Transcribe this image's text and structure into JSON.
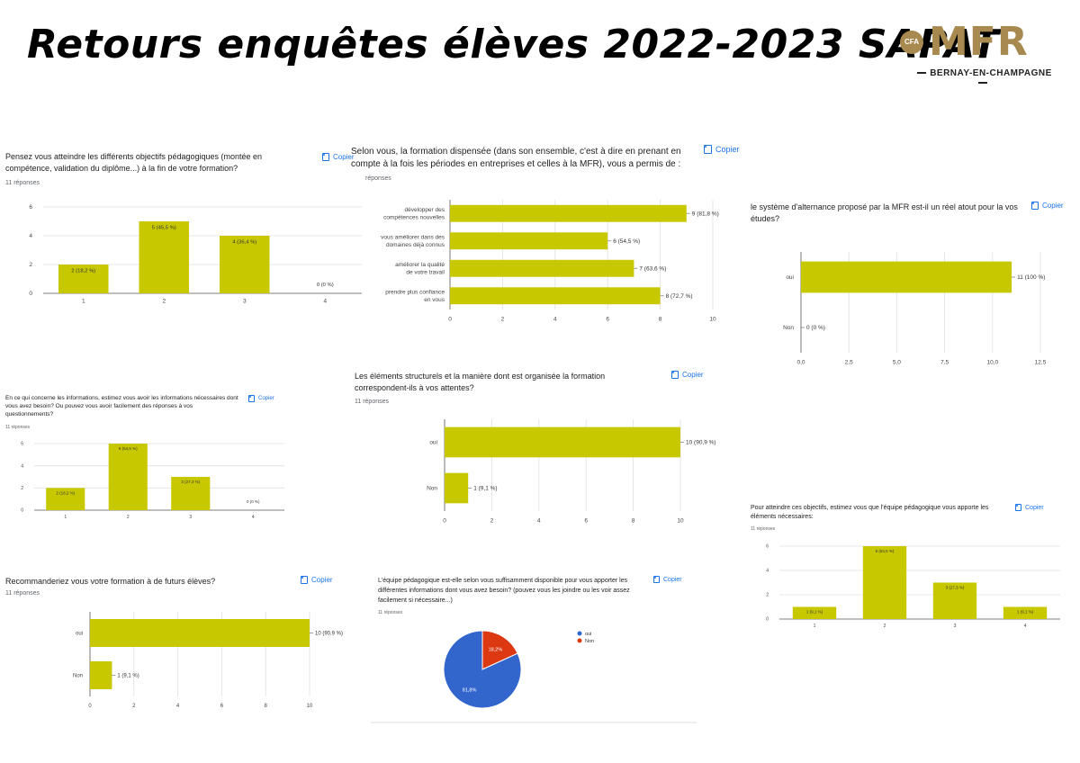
{
  "page": {
    "title": "Retours enquêtes élèves 2022-2023 SAPAT",
    "logo": {
      "cfa": "CFA",
      "main": "MFR",
      "sub": "BERNAY-EN-CHAMPAGNE"
    },
    "copy_label": "Copier",
    "responses_label": "11 réponses"
  },
  "colors": {
    "bar": "#c7c800",
    "pie_oui": "#3366cc",
    "pie_non": "#dc3912",
    "link": "#1a73e8"
  },
  "chart_data": [
    {
      "id": "c1",
      "type": "bar",
      "question": "Pensez vous atteindre les différents objectifs pédagogiques (montée en compétence, validation du diplôme...) à la fin de votre formation?",
      "responses": "11 réponses",
      "categories": [
        "1",
        "2",
        "3",
        "4"
      ],
      "values": [
        2,
        5,
        4,
        0
      ],
      "labels": [
        "2 (18,2 %)",
        "5 (45,5 %)",
        "4 (36,4 %)",
        "0 (0 %)"
      ],
      "ylim": [
        0,
        6
      ],
      "yticks": [
        "0",
        "2",
        "4",
        "6"
      ]
    },
    {
      "id": "c2",
      "type": "bar",
      "orientation": "horizontal",
      "question": "Selon vous, la formation dispensée (dans son ensemble, c'est à dire en prenant en compte à la fois les périodes en entreprises et celles à la MFR), vous a permis de :",
      "responses": "réponses",
      "categories": [
        "développer des compétences nouvelles",
        "vous améliorer dans des domaines déjà connus",
        "améliorer la qualité de votre travail",
        "prendre plus confiance en vous"
      ],
      "values": [
        9,
        6,
        7,
        8
      ],
      "labels": [
        "9 (81,8 %)",
        "6 (54,5 %)",
        "7 (63,6 %)",
        "8 (72,7 %)"
      ],
      "xlim": [
        0,
        10
      ],
      "xticks": [
        "0",
        "2",
        "4",
        "6",
        "8",
        "10"
      ]
    },
    {
      "id": "c3",
      "type": "bar",
      "orientation": "horizontal",
      "question": "le système d'alternance proposé par la MFR est-il un réel atout pour la vos études?",
      "categories": [
        "oui",
        "Non"
      ],
      "values": [
        11,
        0
      ],
      "labels": [
        "11 (100 %)",
        "0 (0 %)"
      ],
      "xlim": [
        0,
        12.5
      ],
      "xticks": [
        "0,0",
        "2,5",
        "5,0",
        "7,5",
        "10,0",
        "12,5"
      ]
    },
    {
      "id": "c4",
      "type": "bar",
      "question": "En ce qui concerne les informations, estimez vous avoir les informations nécessaires dont vous avez besoin? Ou pouvez vous avoir facilement des réponses à vos questionnements?",
      "responses": "11 réponses",
      "categories": [
        "1",
        "2",
        "3",
        "4"
      ],
      "values": [
        2,
        6,
        3,
        0
      ],
      "labels": [
        "2 (18,2 %)",
        "6 (54,5 %)",
        "3 (27,3 %)",
        "0 (0 %)"
      ],
      "ylim": [
        0,
        6
      ],
      "yticks": [
        "0",
        "2",
        "4",
        "6"
      ]
    },
    {
      "id": "c5",
      "type": "bar",
      "orientation": "horizontal",
      "question": "Les éléments structurels et la manière dont est organisée la formation correspondent-ils à vos attentes?",
      "responses": "11 réponses",
      "categories": [
        "oui",
        "Non"
      ],
      "values": [
        10,
        1
      ],
      "labels": [
        "10 (90,9 %)",
        "1 (9,1 %)"
      ],
      "xlim": [
        0,
        10
      ],
      "xticks": [
        "0",
        "2",
        "4",
        "6",
        "8",
        "10"
      ]
    },
    {
      "id": "c6",
      "type": "bar",
      "question": "Pour atteindre ces objectifs, estimez vous que l'équipe pédagogique vous apporte les éléments nécessaires:",
      "responses": "11 réponses",
      "categories": [
        "1",
        "2",
        "3",
        "4"
      ],
      "values": [
        1,
        6,
        3,
        1
      ],
      "labels": [
        "1 (9,1 %)",
        "6 (54,5 %)",
        "3 (27,3 %)",
        "1 (9,1 %)"
      ],
      "ylim": [
        0,
        6
      ],
      "yticks": [
        "0",
        "2",
        "4",
        "6"
      ]
    },
    {
      "id": "c7",
      "type": "bar",
      "orientation": "horizontal",
      "question": "Recommanderiez vous votre formation à de futurs élèves?",
      "responses": "11 réponses",
      "categories": [
        "oui",
        "Non"
      ],
      "values": [
        10,
        1
      ],
      "labels": [
        "10 (90,9 %)",
        "1 (9,1 %)"
      ],
      "xlim": [
        0,
        10
      ],
      "xticks": [
        "0",
        "2",
        "4",
        "6",
        "8",
        "10"
      ]
    },
    {
      "id": "c8",
      "type": "pie",
      "question": "L'équipe pédagogique est-elle selon vous suffisamment disponible pour vous apporter les différentes informations dont vous avez besoin? (pouvez vous les joindre ou les voir assez facilement si nécessaire...)",
      "responses": "11 réponses",
      "slices": [
        {
          "name": "oui",
          "value": 81.8,
          "label": "81,8%"
        },
        {
          "name": "Non",
          "value": 18.2,
          "label": "18,2%"
        }
      ],
      "legend": "right"
    }
  ]
}
